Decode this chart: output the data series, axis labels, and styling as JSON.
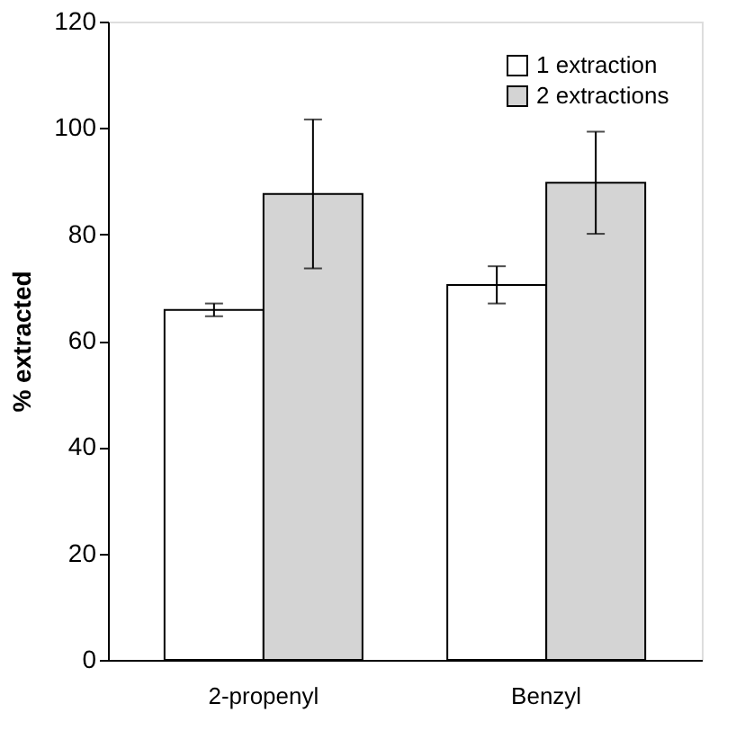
{
  "chart_data": {
    "type": "bar",
    "ylabel": "% extracted",
    "categories": [
      "2-propenyl",
      "Benzyl"
    ],
    "series": [
      {
        "name": "1 extraction",
        "color": "#ffffff",
        "values": [
          65.8,
          70.5
        ],
        "errors": [
          1.2,
          3.5
        ]
      },
      {
        "name": "2 extractions",
        "color": "#d4d4d4",
        "values": [
          87.6,
          89.7
        ],
        "errors": [
          14,
          9.6
        ]
      }
    ],
    "ylim": [
      0,
      120
    ],
    "yticks": [
      0,
      20,
      40,
      60,
      80,
      100,
      120
    ],
    "grid": false,
    "legend": "top right"
  }
}
